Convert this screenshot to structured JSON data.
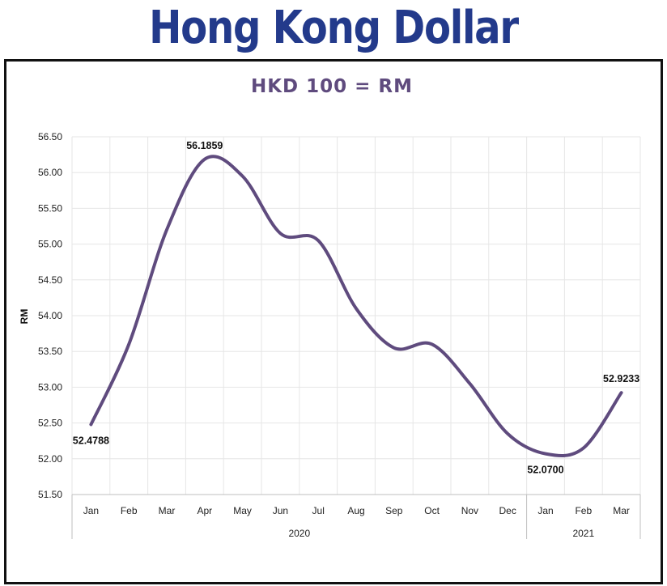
{
  "page": {
    "title": "Hong Kong Dollar"
  },
  "colors": {
    "title": "#233a8b",
    "line": "#5f4b7e",
    "chart_title": "#5f4b7e",
    "frame": "#111111",
    "grid": "#e6e6e6"
  },
  "chart_data": {
    "type": "line",
    "title": "HKD 100 = RM",
    "ylabel": "RM",
    "xlabel": "",
    "categories": [
      "Jan",
      "Feb",
      "Mar",
      "Apr",
      "May",
      "Jun",
      "Jul",
      "Aug",
      "Sep",
      "Oct",
      "Nov",
      "Dec",
      "Jan",
      "Feb",
      "Mar"
    ],
    "year_groups": [
      {
        "label": "2020",
        "start": 0,
        "end": 11
      },
      {
        "label": "2021",
        "start": 12,
        "end": 14
      }
    ],
    "series": [
      {
        "values": [
          52.4788,
          53.6,
          55.2,
          56.1859,
          55.95,
          55.15,
          55.05,
          54.1,
          53.55,
          53.6,
          53.05,
          52.35,
          52.07,
          52.15,
          52.9233
        ],
        "smooth": true
      }
    ],
    "data_labels": [
      {
        "index": 0,
        "text": "52.4788",
        "position": "below"
      },
      {
        "index": 3,
        "text": "56.1859",
        "position": "above"
      },
      {
        "index": 12,
        "text": "52.0700",
        "position": "below"
      },
      {
        "index": 14,
        "text": "52.9233",
        "position": "above"
      }
    ],
    "ylim": [
      51.5,
      56.5
    ],
    "yticks": [
      "51.50",
      "52.00",
      "52.50",
      "53.00",
      "53.50",
      "54.00",
      "54.50",
      "55.00",
      "55.50",
      "56.00",
      "56.50"
    ],
    "grid": true,
    "legend": "none"
  }
}
